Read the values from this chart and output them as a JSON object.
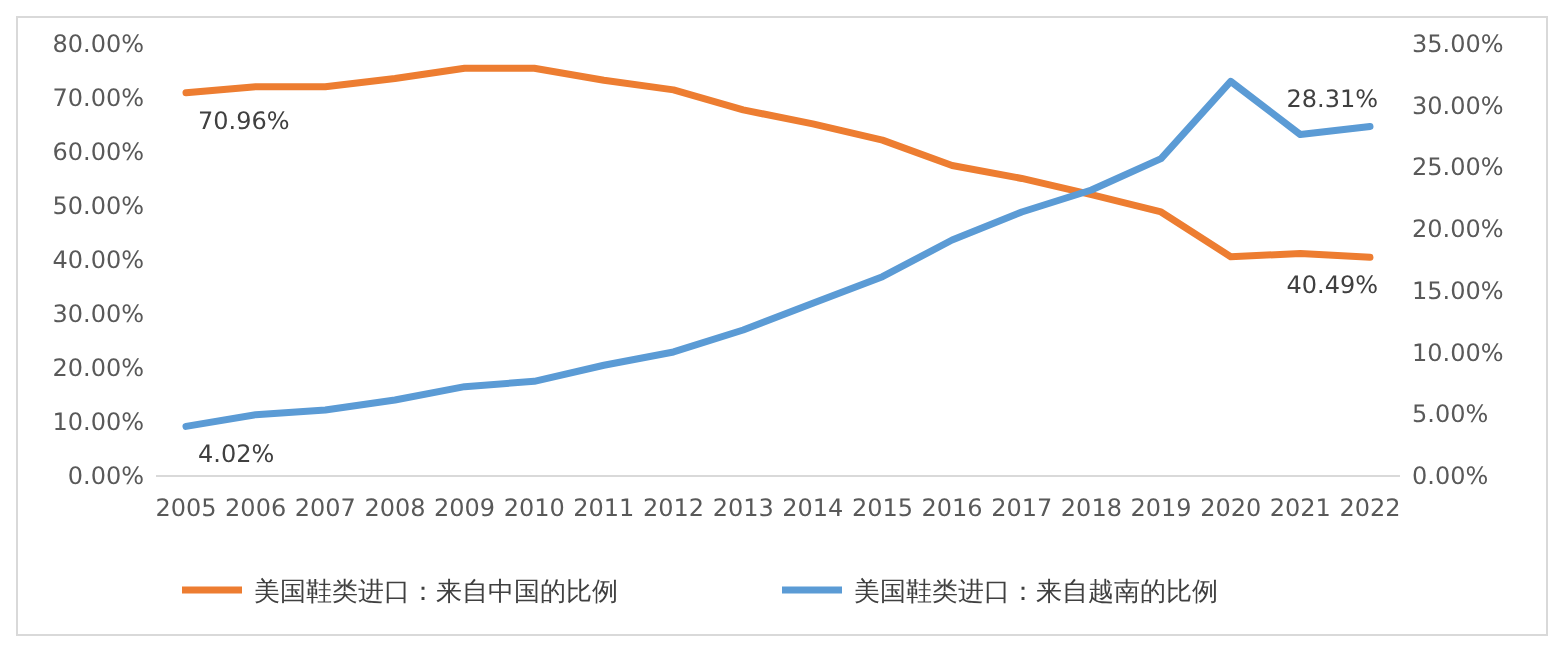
{
  "chart_data": {
    "type": "line",
    "categories": [
      "2005",
      "2006",
      "2007",
      "2008",
      "2009",
      "2010",
      "2011",
      "2012",
      "2013",
      "2014",
      "2015",
      "2016",
      "2017",
      "2018",
      "2019",
      "2020",
      "2021",
      "2022"
    ],
    "series": [
      {
        "name": "美国鞋类进口：来自中国的比例",
        "color": "#ed7d31",
        "values": [
          70.96,
          72.1,
          72.1,
          73.6,
          75.5,
          75.5,
          73.3,
          71.5,
          67.8,
          65.2,
          62.2,
          57.5,
          55.1,
          52.1,
          48.9,
          40.6,
          41.2,
          40.49
        ],
        "value_labels": [
          "70.96%",
          null,
          null,
          null,
          null,
          null,
          null,
          null,
          null,
          null,
          null,
          null,
          null,
          null,
          null,
          null,
          null,
          "40.49%"
        ]
      },
      {
        "name": "美国鞋类进口：来自越南的比例",
        "color": "#5b9bd5",
        "axis": "y2",
        "values": [
          4.02,
          4.97,
          5.35,
          6.16,
          7.24,
          7.67,
          8.97,
          10.05,
          11.83,
          13.99,
          16.15,
          19.12,
          21.39,
          23.17,
          25.71,
          31.97,
          27.66,
          28.31
        ],
        "value_labels": [
          "4.02%",
          null,
          null,
          null,
          null,
          null,
          null,
          null,
          null,
          null,
          null,
          null,
          null,
          null,
          null,
          null,
          null,
          "28.31%"
        ]
      }
    ],
    "ylim": [
      0,
      80
    ],
    "yticks": [
      {
        "value": 0,
        "label": "0.00%"
      },
      {
        "value": 10,
        "label": "10.00%"
      },
      {
        "value": 20,
        "label": "20.00%"
      },
      {
        "value": 30,
        "label": "30.00%"
      },
      {
        "value": 40,
        "label": "40.00%"
      },
      {
        "value": 50,
        "label": "50.00%"
      },
      {
        "value": 60,
        "label": "60.00%"
      },
      {
        "value": 70,
        "label": "70.00%"
      },
      {
        "value": 80,
        "label": "80.00%"
      }
    ],
    "y2lim": [
      0,
      35
    ],
    "y2ticks": [
      {
        "value": 0,
        "label": "0.00%"
      },
      {
        "value": 5,
        "label": "5.00%"
      },
      {
        "value": 10,
        "label": "10.00%"
      },
      {
        "value": 15,
        "label": "15.00%"
      },
      {
        "value": 20,
        "label": "20.00%"
      },
      {
        "value": 25,
        "label": "25.00%"
      },
      {
        "value": 30,
        "label": "30.00%"
      },
      {
        "value": 35,
        "label": "35.00%"
      }
    ],
    "legend": "bottom",
    "grid": false,
    "marker": "none",
    "line_style": "solid"
  }
}
